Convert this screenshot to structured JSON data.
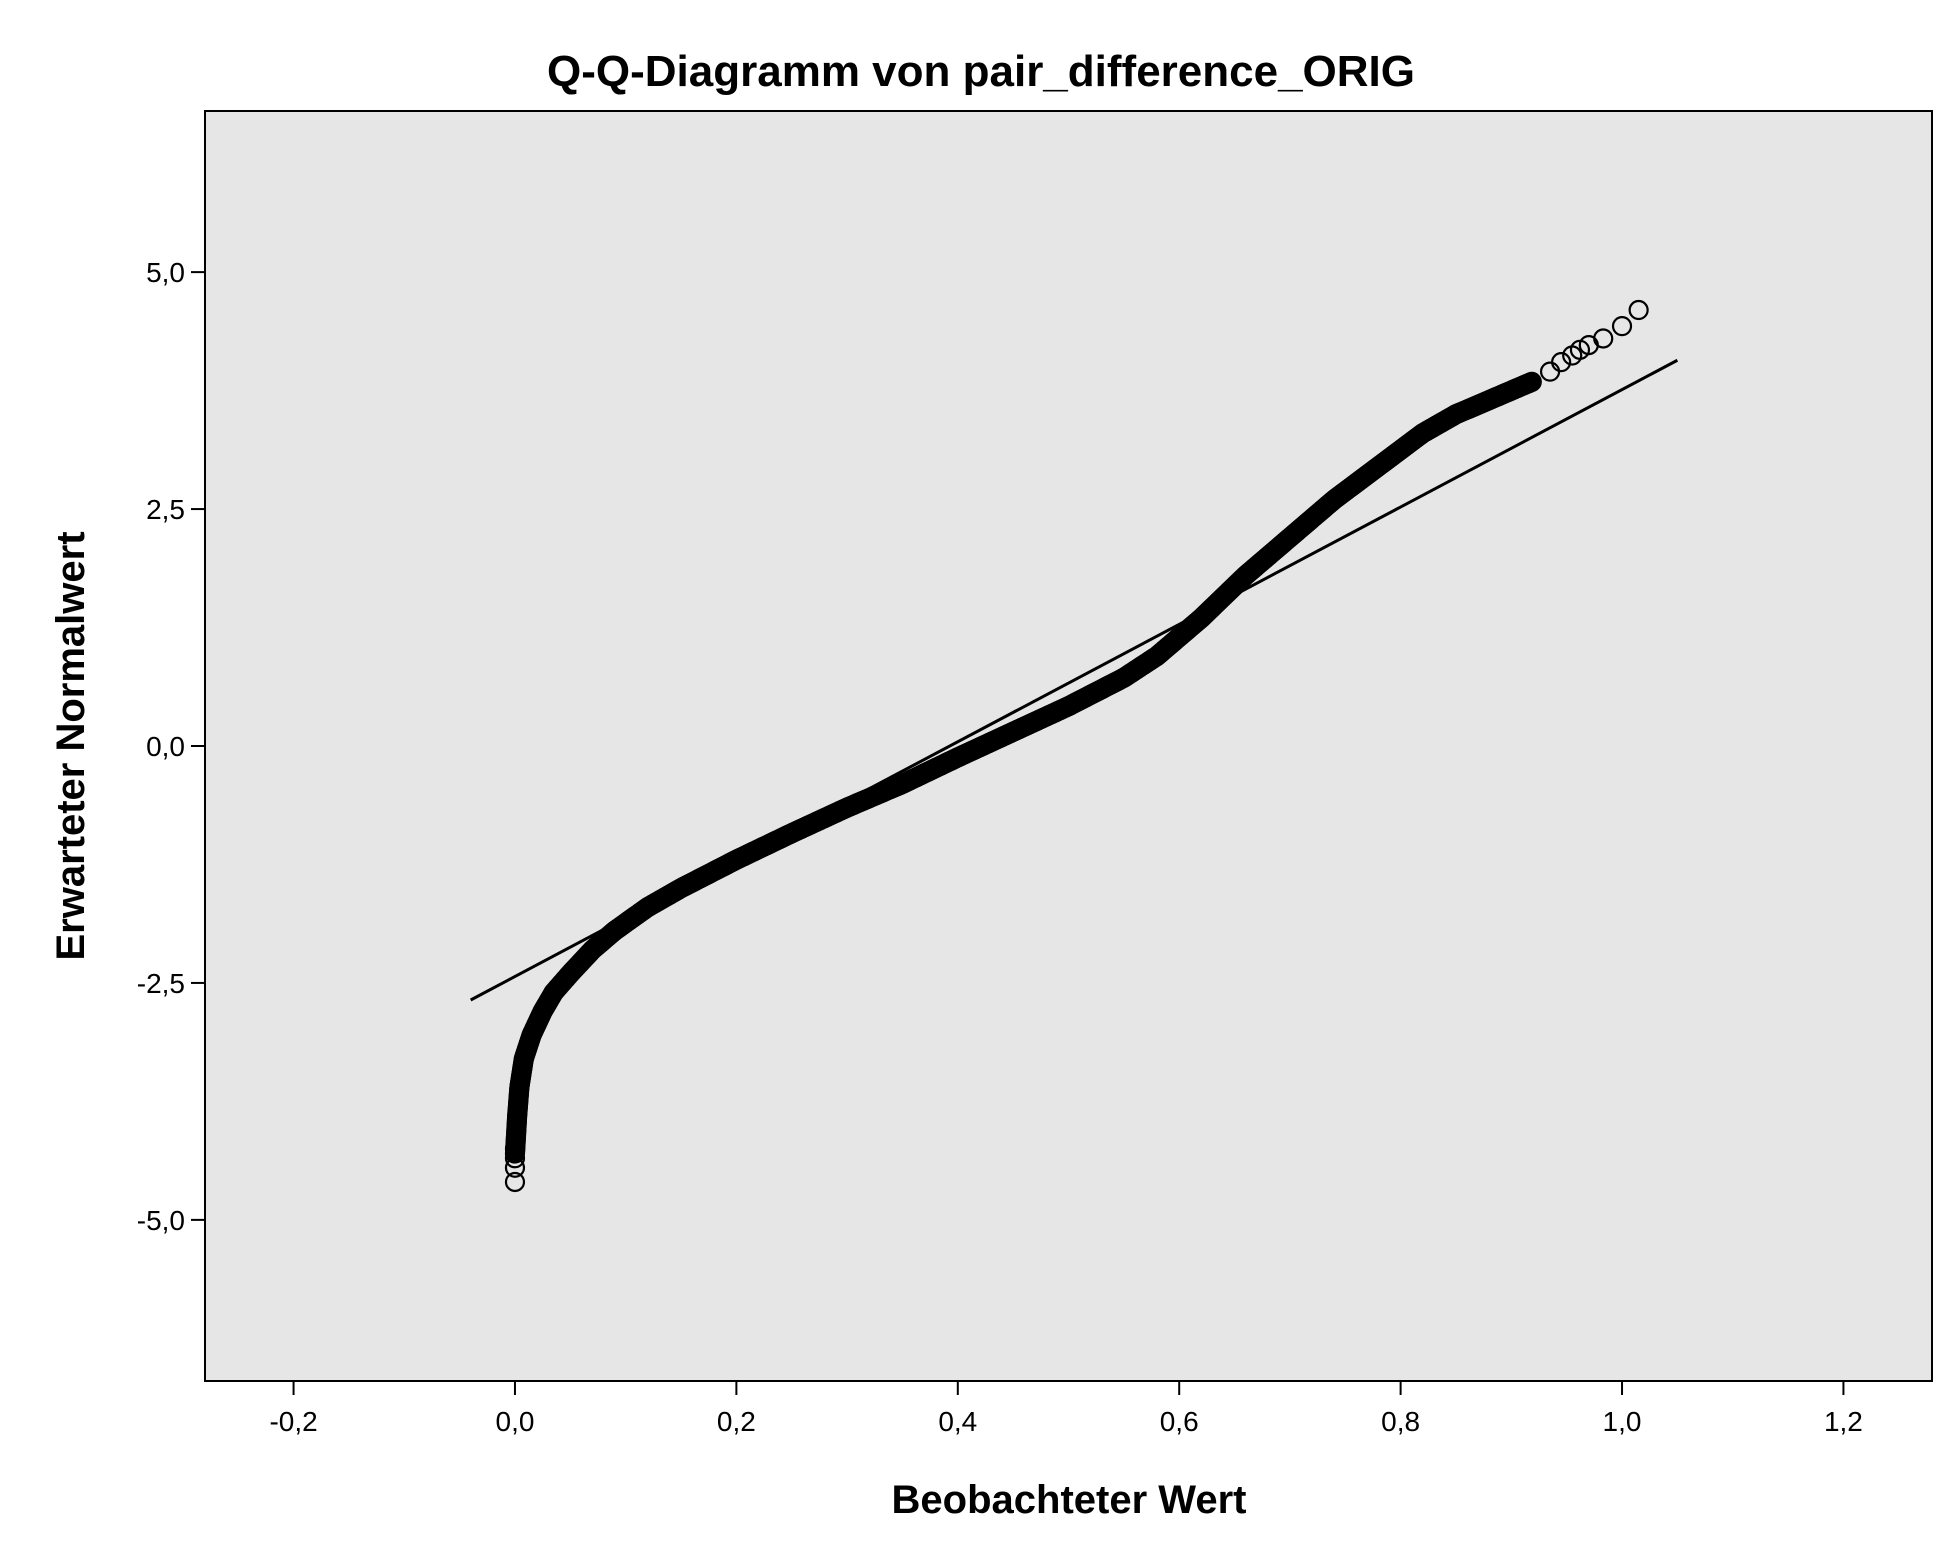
{
  "chart_data": {
    "type": "scatter",
    "title": "Q-Q-Diagramm von pair_difference_ORIG",
    "xlabel": "Beobachteter Wert",
    "ylabel": "Erwarteter Normalwert",
    "xlim": [
      -0.28,
      1.28
    ],
    "ylim": [
      -6.7,
      6.7
    ],
    "x_ticks": [
      -0.2,
      0.0,
      0.2,
      0.4,
      0.6,
      0.8,
      1.0,
      1.2
    ],
    "x_tick_labels": [
      "-0,2",
      "0,0",
      "0,2",
      "0,4",
      "0,6",
      "0,8",
      "1,0",
      "1,2"
    ],
    "y_ticks": [
      5.0,
      2.5,
      0.0,
      -2.5,
      -5.0
    ],
    "y_tick_labels": [
      "5,0",
      "2,5",
      "0,0",
      "-2,5",
      "-5,0"
    ],
    "grid": false,
    "legend": "none",
    "colors": {
      "plot_background": "#e6e6e6",
      "points": "#000000",
      "line": "#000000",
      "frame": "#000000"
    },
    "reference_line": {
      "x": [
        -0.04,
        1.05
      ],
      "y": [
        -2.68,
        4.07
      ]
    },
    "series": [
      {
        "marker": "open-circle",
        "dense_curve": {
          "x": [
            0.0,
            0.001,
            0.002,
            0.004,
            0.008,
            0.015,
            0.025,
            0.035,
            0.05,
            0.07,
            0.09,
            0.12,
            0.15,
            0.2,
            0.25,
            0.3,
            0.35,
            0.4,
            0.45,
            0.5,
            0.55,
            0.58,
            0.62,
            0.66,
            0.7,
            0.74,
            0.78,
            0.82,
            0.85,
            0.88,
            0.9,
            0.92
          ],
          "y": [
            -4.3,
            -4.1,
            -3.9,
            -3.6,
            -3.3,
            -3.05,
            -2.8,
            -2.6,
            -2.4,
            -2.15,
            -1.95,
            -1.7,
            -1.5,
            -1.2,
            -0.92,
            -0.65,
            -0.4,
            -0.12,
            0.15,
            0.42,
            0.72,
            0.95,
            1.35,
            1.8,
            2.2,
            2.6,
            2.95,
            3.3,
            3.5,
            3.65,
            3.75,
            3.85
          ]
        },
        "outliers": [
          {
            "x": 0.0,
            "y": -4.6
          },
          {
            "x": 0.0,
            "y": -4.45
          },
          {
            "x": 0.0,
            "y": -4.35
          },
          {
            "x": 0.0,
            "y": -4.25
          },
          {
            "x": 0.935,
            "y": 3.95
          },
          {
            "x": 0.945,
            "y": 4.05
          },
          {
            "x": 0.955,
            "y": 4.12
          },
          {
            "x": 0.962,
            "y": 4.18
          },
          {
            "x": 0.97,
            "y": 4.23
          },
          {
            "x": 0.983,
            "y": 4.3
          },
          {
            "x": 1.0,
            "y": 4.43
          },
          {
            "x": 1.015,
            "y": 4.6
          }
        ]
      }
    ]
  }
}
